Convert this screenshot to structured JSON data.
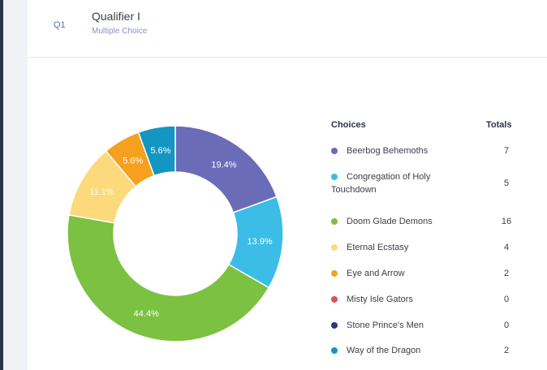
{
  "question": {
    "number": "Q1",
    "title": "Qualifier I",
    "type": "Multiple Choice"
  },
  "legend": {
    "choices_header": "Choices",
    "totals_header": "Totals"
  },
  "colors": {
    "Beerbog Behemoths": "#6a6cb8",
    "Congregation of Holy Touchdown": "#3bbde7",
    "Doom Glade Demons": "#7bc142",
    "Eternal Ecstasy": "#fcd97b",
    "Eye and Arrow": "#f5a01e",
    "Misty Isle Gators": "#e05050",
    "Stone Prince's Men": "#2b3582",
    "Way of the Dragon": "#1496c2"
  },
  "chart_data": {
    "type": "pie",
    "donut": true,
    "categories": [
      "Beerbog Behemoths",
      "Congregation of Holy Touchdown",
      "Doom Glade Demons",
      "Eternal Ecstasy",
      "Eye and Arrow",
      "Misty Isle Gators",
      "Stone Prince's Men",
      "Way of the Dragon"
    ],
    "values": [
      7,
      5,
      16,
      4,
      2,
      0,
      0,
      2
    ],
    "labels": [
      "19.4%",
      "13.9%",
      "44.4%",
      "11.1%",
      "5.6%",
      "",
      "",
      "5.6%"
    ]
  }
}
